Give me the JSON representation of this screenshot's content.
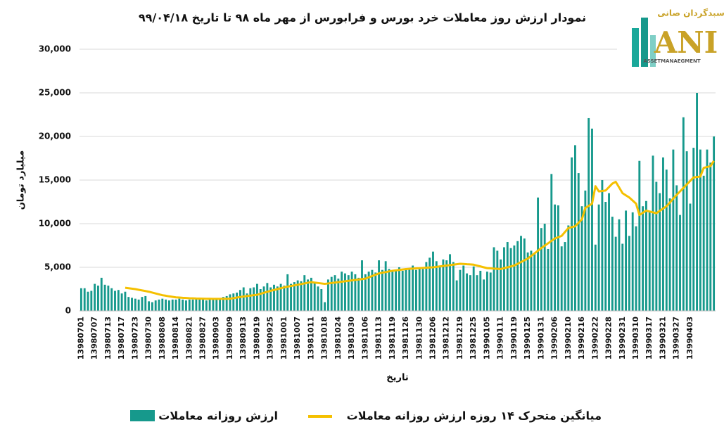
{
  "chart_data": {
    "type": "bar",
    "title": "نمودار ارزش روز معاملات خرد بورس و فرابورس از مهر ماه ۹۸ تا تاریخ ۹۹/۰۴/۱۸",
    "y_label": "میلیارد تومان",
    "x_label": "تاریخ",
    "logo": {
      "persian": "سبدگردان صانی",
      "latin": "ANI",
      "tagline": "ASSETMANAEGMENT"
    },
    "ylim": [
      0,
      30000
    ],
    "yticks": [
      0,
      {
        "value": 5000,
        "label": "5,000"
      },
      {
        "value": 10000,
        "label": "10,000"
      },
      {
        "value": 15000,
        "label": "15,000"
      },
      {
        "value": 20000,
        "label": "20,000"
      },
      {
        "value": 25000,
        "label": "25,000"
      },
      {
        "value": 30000,
        "label": "30,000"
      }
    ],
    "grid": true,
    "legend": "bottom",
    "categories": [
      "13980701",
      null,
      null,
      null,
      "13980707",
      null,
      null,
      null,
      "13980713",
      null,
      null,
      null,
      "13980717",
      null,
      null,
      null,
      "13980723",
      null,
      null,
      null,
      "13980730",
      null,
      null,
      null,
      "13980808",
      null,
      null,
      null,
      "13980814",
      null,
      null,
      null,
      "13980821",
      null,
      null,
      null,
      "13980827",
      null,
      null,
      null,
      "13980903",
      null,
      null,
      null,
      "13980909",
      null,
      null,
      null,
      "13980913",
      null,
      null,
      null,
      "13980919",
      null,
      null,
      null,
      "13980925",
      null,
      null,
      null,
      "13981001",
      null,
      null,
      null,
      "13981007",
      null,
      null,
      null,
      "13981011",
      null,
      null,
      null,
      "13981018",
      null,
      null,
      null,
      "13981024",
      null,
      null,
      null,
      "13981030",
      null,
      null,
      null,
      "13981106",
      null,
      null,
      null,
      "13981113",
      null,
      null,
      null,
      "13981119",
      null,
      null,
      null,
      "13981126",
      null,
      null,
      null,
      "13981130",
      null,
      null,
      null,
      "13981206",
      null,
      null,
      null,
      "13981212",
      null,
      null,
      null,
      "13981219",
      null,
      null,
      null,
      "13981225",
      null,
      null,
      null,
      "13990105",
      null,
      null,
      null,
      "13990111",
      null,
      null,
      null,
      "13990119",
      null,
      null,
      null,
      "13990125",
      null,
      null,
      null,
      "13990131",
      null,
      null,
      null,
      "13990206",
      null,
      null,
      null,
      "13990210",
      null,
      null,
      null,
      "13990216",
      null,
      null,
      null,
      "13990222",
      null,
      null,
      null,
      "13990228",
      null,
      null,
      null,
      "13990231",
      null,
      null,
      null,
      "13990310",
      null,
      null,
      null,
      "13990317",
      null,
      null,
      null,
      "13990321",
      null,
      null,
      null,
      "13990327",
      null,
      null,
      null,
      "13990403",
      null,
      null,
      null,
      null,
      null,
      null,
      null
    ],
    "series": [
      {
        "name": "ارزش روزانه معاملات",
        "type": "bar",
        "color": "#16998c",
        "values": [
          2600,
          2600,
          2200,
          2300,
          3100,
          2900,
          3800,
          3000,
          2900,
          2600,
          2300,
          2400,
          2000,
          2200,
          1600,
          1500,
          1400,
          1300,
          1600,
          1700,
          1100,
          1000,
          1200,
          1300,
          1400,
          1300,
          1200,
          1300,
          1300,
          1400,
          1300,
          1200,
          1300,
          1300,
          1400,
          1300,
          1300,
          1200,
          1300,
          1400,
          1300,
          1400,
          1600,
          1700,
          1900,
          2000,
          2100,
          2400,
          2700,
          2000,
          2600,
          2700,
          3100,
          2500,
          2800,
          3200,
          2700,
          3000,
          2800,
          3100,
          2900,
          4200,
          3100,
          3300,
          3500,
          3400,
          4100,
          3600,
          3800,
          3300,
          2800,
          2500,
          1000,
          3600,
          3900,
          4100,
          3700,
          4500,
          4300,
          4100,
          4500,
          4200,
          3800,
          5800,
          4200,
          4500,
          4700,
          4400,
          5800,
          4700,
          5700,
          4800,
          4500,
          4700,
          5000,
          4600,
          4700,
          4900,
          5200,
          4700,
          5000,
          4800,
          5600,
          6100,
          6800,
          5700,
          5200,
          5900,
          5800,
          6500,
          5600,
          3500,
          4700,
          5200,
          4300,
          4100,
          5100,
          4100,
          4600,
          3600,
          4500,
          4400,
          7300,
          6900,
          5900,
          7300,
          7900,
          7200,
          7500,
          8000,
          8600,
          8300,
          6700,
          6900,
          6500,
          13000,
          9500,
          10000,
          7100,
          15700,
          12200,
          12100,
          7400,
          7900,
          9800,
          17600,
          19000,
          15800,
          12000,
          13800,
          22100,
          20900,
          7600,
          12200,
          15000,
          12500,
          13500,
          10800,
          8500,
          10500,
          7700,
          11500,
          8600,
          11300,
          9700,
          17200,
          12000,
          12600,
          11400,
          17800,
          14800,
          13500,
          17600,
          16200,
          12900,
          18500,
          14400,
          11000,
          22200,
          18300,
          12300,
          18700,
          25000,
          18500,
          15500,
          18500,
          17000,
          20000
        ]
      },
      {
        "name": "میانگین متحرک ۱۴ روزه ارزش روزانه معاملات",
        "type": "line",
        "color": "#f5c000",
        "values": [
          null,
          null,
          null,
          null,
          null,
          null,
          null,
          null,
          null,
          null,
          null,
          null,
          null,
          2650,
          2600,
          2550,
          2500,
          2420,
          2350,
          2280,
          2200,
          2100,
          2000,
          1900,
          1800,
          1740,
          1670,
          1610,
          1550,
          1530,
          1500,
          1480,
          1450,
          1440,
          1420,
          1410,
          1400,
          1395,
          1390,
          1385,
          1380,
          1385,
          1390,
          1395,
          1400,
          1460,
          1530,
          1590,
          1650,
          1700,
          1750,
          1800,
          1850,
          1960,
          2080,
          2190,
          2300,
          2400,
          2500,
          2600,
          2700,
          2780,
          2850,
          2930,
          3000,
          3080,
          3150,
          3230,
          3300,
          3250,
          3200,
          3150,
          3100,
          3150,
          3200,
          3250,
          3300,
          3350,
          3400,
          3450,
          3500,
          3550,
          3600,
          3650,
          3700,
          3850,
          4000,
          4150,
          4300,
          4380,
          4450,
          4530,
          4600,
          4650,
          4700,
          4750,
          4800,
          4830,
          4850,
          4880,
          4900,
          4930,
          4950,
          4980,
          5000,
          5050,
          5100,
          5150,
          5200,
          5250,
          5300,
          5350,
          5400,
          5380,
          5350,
          5330,
          5300,
          5200,
          5100,
          5000,
          4900,
          4880,
          4850,
          4830,
          4800,
          4900,
          5000,
          5100,
          5200,
          5400,
          5600,
          5800,
          6000,
          6300,
          6600,
          6900,
          7200,
          7480,
          7750,
          8030,
          8300,
          8450,
          8600,
          9050,
          9500,
          9600,
          9700,
          10100,
          10500,
          11800,
          12050,
          12300,
          14300,
          13700,
          13750,
          13800,
          14200,
          14600,
          14800,
          14150,
          13500,
          13250,
          13000,
          12650,
          12300,
          11000,
          11250,
          11500,
          11400,
          11300,
          11200,
          11470,
          11730,
          12000,
          12430,
          12870,
          13300,
          13700,
          14100,
          14500,
          14900,
          15300,
          15350,
          15400,
          16400,
          16500,
          16600,
          17200
        ]
      }
    ]
  }
}
